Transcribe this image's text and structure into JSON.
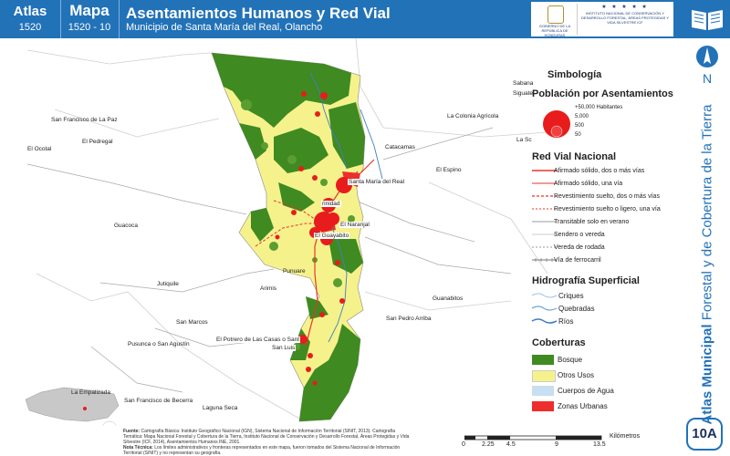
{
  "header": {
    "atlas_label": "Atlas",
    "atlas_number": "1520",
    "mapa_label": "Mapa",
    "mapa_number": "1520 - 10",
    "title": "Asentamientos Humanos y Red Vial",
    "subtitle": "Municipio de Santa María del Real, Olancho",
    "logo_left_text": "GOBIERNO DE LA REPÚBLICA DE HONDURAS",
    "logo_right_stars": "★ ★ ★ ★ ★",
    "logo_right_text": "INSTITUTO NACIONAL DE CONSERVACIÓN Y DESARROLLO FORESTAL, ÁREAS PROTEGIDAS Y VIDA SILVESTRE ICF"
  },
  "side": {
    "north_letter": "N",
    "vertical_title_bold": "Atlas Municipal",
    "vertical_title_rest": " Forestal y de Cobertura de la Tierra",
    "badge": "10A"
  },
  "legend": {
    "title": "Simbología",
    "pop_title": "Población por Asentamientos",
    "pop_items": [
      "+50,000 Habitantes",
      "5,000",
      "500",
      "50"
    ],
    "roads_title": "Red Vial Nacional",
    "roads": [
      {
        "label": "Afirmado sólido, dos o más vías",
        "color": "#e8352b",
        "style": "solid"
      },
      {
        "label": "Afirmado sólido, una vía",
        "color": "#e8352b",
        "style": "solid"
      },
      {
        "label": "Revestimiento suelto, dos o más vías",
        "color": "#e8352b",
        "style": "dash"
      },
      {
        "label": "Revestimiento suelto o ligero, una vía",
        "color": "#e8352b",
        "style": "dash"
      },
      {
        "label": "Transitable solo en verano",
        "color": "#9a9a9a",
        "style": "solid"
      },
      {
        "label": "Sendero o vereda",
        "color": "#cccccc",
        "style": "solid"
      },
      {
        "label": "Vereda de rodada",
        "color": "#9a9a9a",
        "style": "dash"
      },
      {
        "label": "Vía de ferrocarril",
        "color": "#777777",
        "style": "rail"
      }
    ],
    "hydro_title": "Hidrografía Superficial",
    "hydro": [
      {
        "label": "Criques",
        "color": "#9cc3e6"
      },
      {
        "label": "Quebradas",
        "color": "#6ea6d8"
      },
      {
        "label": "Ríos",
        "color": "#3f7fc1"
      }
    ],
    "cover_title": "Coberturas",
    "cover": [
      {
        "label": "Bosque",
        "color": "#3f8a21"
      },
      {
        "label": "Otros Usos",
        "color": "#f5f28c"
      },
      {
        "label": "Cuerpos de Agua",
        "color": "#c7dff0"
      },
      {
        "label": "Zonas Urbanas",
        "color": "#ee2d2d"
      }
    ]
  },
  "places": {
    "sabana": "Sabana",
    "siguate": "Siguate",
    "san_francisco_paz": "San Francisco de La Paz",
    "la_colonia": "La Colonia Agrícola",
    "el_pedregal": "El Pedregal",
    "el_ocotal": "El Ocotal",
    "la_sc": "La Sc",
    "catacamas": "Catacamas",
    "el_espino": "El Espino",
    "santa_maria": "Santa María del Real",
    "guacoca": "Guacoca",
    "trinidad": "rinidad",
    "el_naranjal": "El Naranjal",
    "el_guayabito": "El Guayabito",
    "punuare": "Punuare",
    "jutiquile": "Jutiquile",
    "arimis": "Arimis",
    "guanabitos": "Guanabitos",
    "san_marcos": "San Marcos",
    "san_pedro_arriba": "San Pedro Arriba",
    "potrero": "El Potrero de Las Casas o Sant",
    "san_luis": "San Luis",
    "pusunca": "Pusunca o San Agustín",
    "la_empalizada": "La Empalizada",
    "san_francisco_becerra": "San Francisco de Becerra",
    "laguna_seca": "Laguna Seca"
  },
  "footer": {
    "fuente_label": "Fuente:",
    "fuente_text": "Cartografía Básica: Instituto Geográfico Nacional (IGN), Sistema Nacional de Información Territorial (SINIT, 2013). Cartografía Temática: Mapa Nacional Forestal y Cobertura de la Tierra, Instituto Nacional de Conservación y Desarrollo Forestal, Áreas Protegidas y Vida Silvestre (ICF, 2014), Asentamientos Humanos INE, 2001.",
    "nota_label": "Nota Técnica:",
    "nota_text": "Los límites administrativos y fronteras representados en este mapa, fueron tomados del Sistema Nacional de Información Territorial (SINIT) y no representan su geografía.",
    "scale_unit": "Kilómetros",
    "scale_ticks": [
      "0",
      "2.25",
      "4.5",
      "9",
      "13.5"
    ]
  }
}
